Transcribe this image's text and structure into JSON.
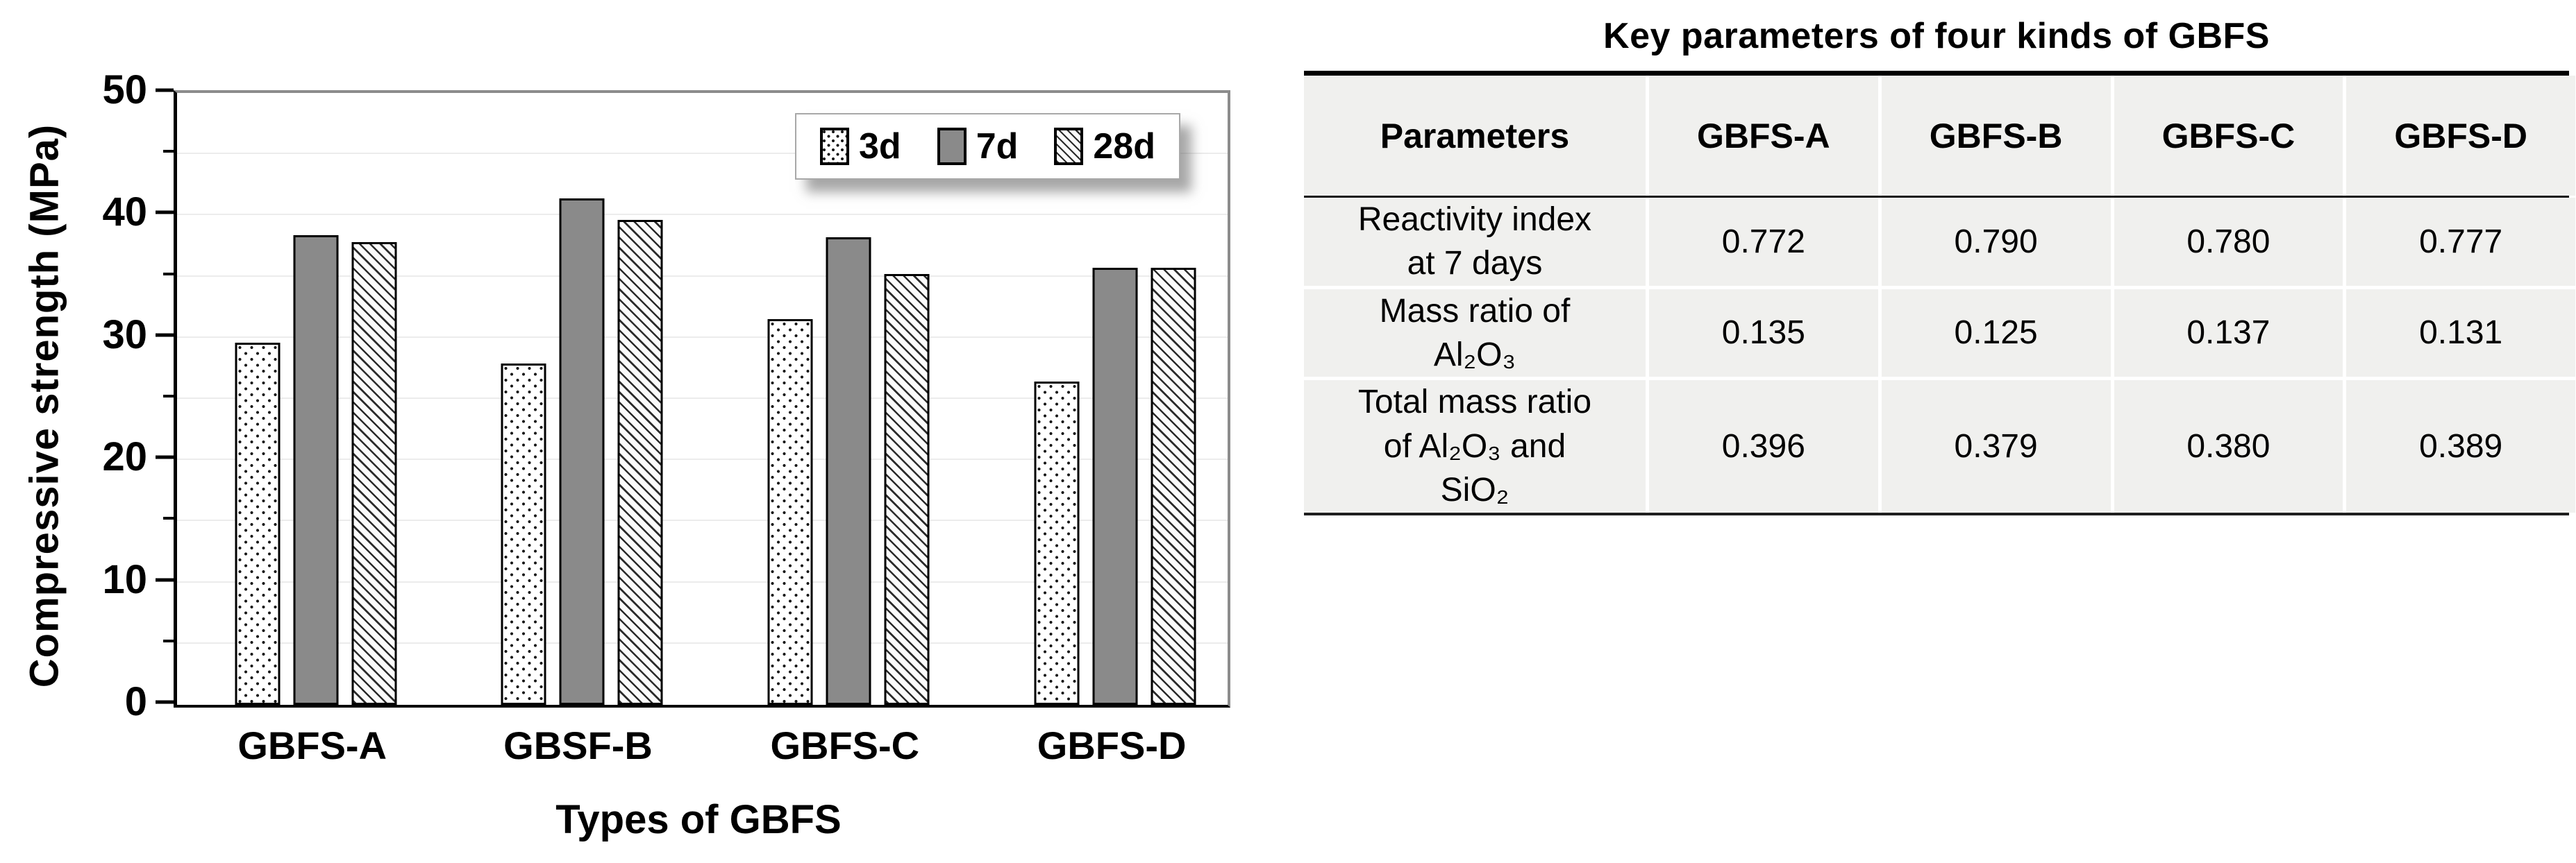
{
  "chart": {
    "y_axis_title": "Compressive strength (MPa)",
    "x_axis_title": "Types of GBFS",
    "frame_color": "#8c8c8c",
    "axis_color": "#000000",
    "gridline_color": "#ececec",
    "bar_gray": "#8a8a8a"
  },
  "chart_data": {
    "type": "bar",
    "title": "",
    "xlabel": "Types of GBFS",
    "ylabel": "Compressive strength (MPa)",
    "categories": [
      "GBFS-A",
      "GBSF-B",
      "GBFS-C",
      "GBFS-D"
    ],
    "series": [
      {
        "name": "3d",
        "pattern": "dots",
        "values": [
          29.6,
          27.9,
          31.5,
          26.4
        ]
      },
      {
        "name": "7d",
        "pattern": "solid-gray",
        "values": [
          38.4,
          41.4,
          38.2,
          35.7
        ]
      },
      {
        "name": "28d",
        "pattern": "diagonal-hatch",
        "values": [
          37.8,
          39.6,
          35.2,
          35.7
        ]
      }
    ],
    "ylim": [
      0,
      50
    ],
    "y_major_ticks": [
      0,
      10,
      20,
      30,
      40,
      50
    ],
    "y_minor_ticks": [
      5,
      15,
      25,
      35,
      45
    ],
    "gridline_step": 5,
    "grid": true,
    "legend_position": "top-right-inside"
  },
  "table": {
    "title": "Key parameters of four kinds of GBFS",
    "columns": [
      "Parameters",
      "GBFS-A",
      "GBFS-B",
      "GBFS-C",
      "GBFS-D"
    ],
    "rows": [
      {
        "parameter": "Reactivity index at 7 days",
        "values": [
          "0.772",
          "0.790",
          "0.780",
          "0.777"
        ]
      },
      {
        "parameter": "Mass ratio of Al₂O₃",
        "values": [
          "0.135",
          "0.125",
          "0.137",
          "0.131"
        ]
      },
      {
        "parameter": "Total mass ratio of Al₂O₃ and SiO₂",
        "values": [
          "0.396",
          "0.379",
          "0.380",
          "0.389"
        ]
      }
    ]
  }
}
